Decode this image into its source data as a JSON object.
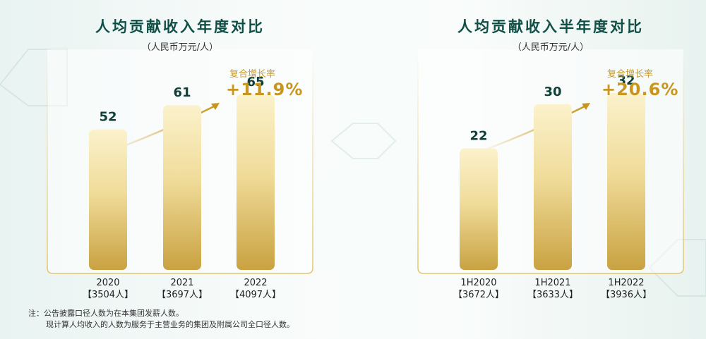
{
  "colors": {
    "title": "#0f4f45",
    "value_label": "#0f3f38",
    "bar_top": "#fbf2cc",
    "bar_bottom": "#c9a241",
    "growth": "#c8961f",
    "frame": "#e6c56a"
  },
  "chart_data": [
    {
      "type": "bar",
      "title": "人均贡献收入年度对比",
      "subtitle": "（人民币万元/人）",
      "categories": [
        "2020",
        "2021",
        "2022"
      ],
      "sublabels": [
        "【3504人】",
        "【3697人】",
        "【4097人】"
      ],
      "values": [
        52,
        61,
        65
      ],
      "value_labels": [
        "52",
        "61",
        "65"
      ],
      "ylim": [
        0,
        90
      ],
      "growth_label": "复合增长率",
      "growth_value": "+11.9%"
    },
    {
      "type": "bar",
      "title": "人均贡献收入半年度对比",
      "subtitle": "（人民币万元/人）",
      "categories": [
        "1H2020",
        "1H2021",
        "1H2022"
      ],
      "sublabels": [
        "【3672人】",
        "【3633人】",
        "【3936人】"
      ],
      "values": [
        22,
        30,
        32
      ],
      "value_labels": [
        "22",
        "30",
        "32"
      ],
      "ylim": [
        0,
        44
      ],
      "growth_label": "复合增长率",
      "growth_value": "+20.6%"
    }
  ],
  "note": {
    "line1": "注：公告披露口径人数为在本集团发薪人数。",
    "line2": "现计算人均收入的人数为服务于主营业务的集团及附属公司全口径人数。"
  }
}
